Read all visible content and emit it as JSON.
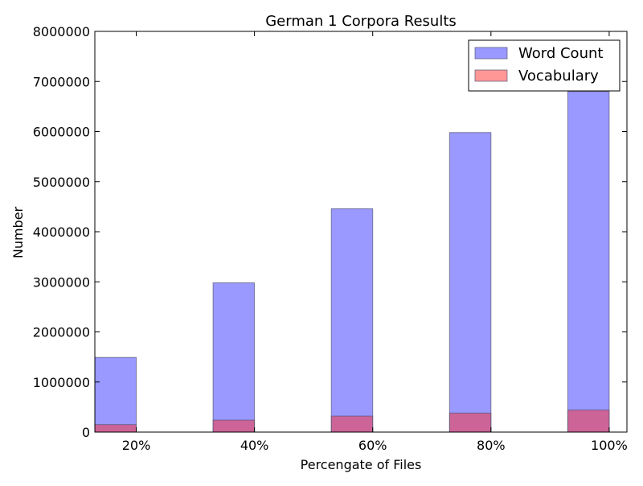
{
  "chart_data": {
    "type": "bar",
    "title": "German 1 Corpora Results",
    "xlabel": "Percengate of Files",
    "ylabel": "Number",
    "categories": [
      "20%",
      "40%",
      "60%",
      "80%",
      "100%"
    ],
    "series": [
      {
        "name": "Word Count",
        "color": "#9999ff",
        "values": [
          1490000,
          2980000,
          4460000,
          5980000,
          6800000
        ]
      },
      {
        "name": "Vocabulary",
        "color": "#c05599",
        "values": [
          150000,
          240000,
          320000,
          380000,
          440000
        ]
      }
    ],
    "ylim": [
      0,
      8000000
    ],
    "yticks": [
      0,
      1000000,
      2000000,
      3000000,
      4000000,
      5000000,
      6000000,
      7000000,
      8000000
    ],
    "ytick_labels": [
      "0",
      "1000000",
      "2000000",
      "3000000",
      "4000000",
      "5000000",
      "6000000",
      "7000000",
      "8000000"
    ],
    "grid": false,
    "legend_position": "top-right"
  }
}
